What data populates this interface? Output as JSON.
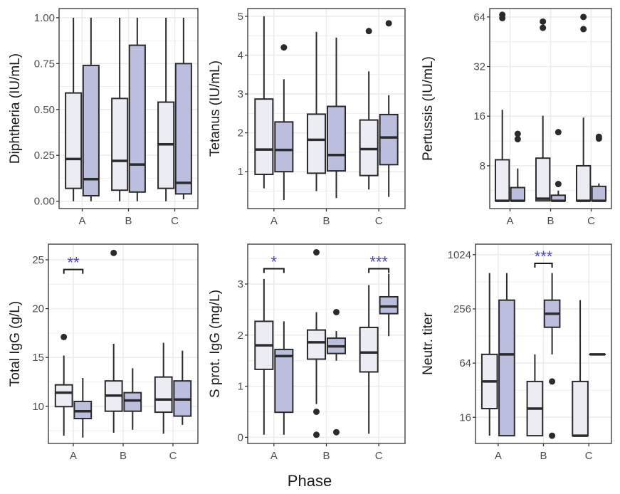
{
  "figure": {
    "x_title": "Phase",
    "colors": {
      "group1_fill": "#ececf4",
      "group2_fill": "#bcbedd",
      "box_stroke": "#2b2b2b",
      "significance": "#4b46c8",
      "grid": "#ebebeb"
    }
  },
  "chart_data": [
    {
      "type": "box",
      "ylabel": "Diphtheria (IU/mL)",
      "scale": "linear",
      "ylim": [
        -0.04,
        1.05
      ],
      "yticks": [
        0,
        0.25,
        0.5,
        0.75,
        1.0
      ],
      "ytick_labels": [
        "0.00",
        "0.25",
        "0.50",
        "0.75",
        "1.00"
      ],
      "yminor": [
        0.125,
        0.375,
        0.625,
        0.875
      ],
      "categories": [
        "A",
        "B",
        "C"
      ],
      "boxes": [
        {
          "cat": "A",
          "group": 1,
          "lo": 0.0,
          "q1": 0.07,
          "med": 0.23,
          "q3": 0.59,
          "hi": 1.0,
          "outliers": []
        },
        {
          "cat": "A",
          "group": 2,
          "lo": 0.0,
          "q1": 0.03,
          "med": 0.12,
          "q3": 0.74,
          "hi": 1.0,
          "outliers": []
        },
        {
          "cat": "B",
          "group": 1,
          "lo": 0.0,
          "q1": 0.06,
          "med": 0.22,
          "q3": 0.56,
          "hi": 1.0,
          "outliers": []
        },
        {
          "cat": "B",
          "group": 2,
          "lo": 0.0,
          "q1": 0.05,
          "med": 0.2,
          "q3": 0.85,
          "hi": 1.0,
          "outliers": []
        },
        {
          "cat": "C",
          "group": 1,
          "lo": 0.0,
          "q1": 0.07,
          "med": 0.31,
          "q3": 0.54,
          "hi": 1.0,
          "outliers": []
        },
        {
          "cat": "C",
          "group": 2,
          "lo": 0.01,
          "q1": 0.04,
          "med": 0.1,
          "q3": 0.75,
          "hi": 1.0,
          "outliers": []
        }
      ],
      "significance": []
    },
    {
      "type": "box",
      "ylabel": "Tetanus (IU/mL)",
      "scale": "linear",
      "ylim": [
        0.05,
        5.2
      ],
      "yticks": [
        1,
        2,
        3,
        4,
        5
      ],
      "ytick_labels": [
        "1",
        "2",
        "3",
        "4",
        "5"
      ],
      "yminor": [
        0.5,
        1.5,
        2.5,
        3.5,
        4.5
      ],
      "categories": [
        "A",
        "B",
        "C"
      ],
      "boxes": [
        {
          "cat": "A",
          "group": 1,
          "lo": 0.57,
          "q1": 0.93,
          "med": 1.57,
          "q3": 2.87,
          "hi": 5.0,
          "outliers": []
        },
        {
          "cat": "A",
          "group": 2,
          "lo": 0.27,
          "q1": 1.0,
          "med": 1.56,
          "q3": 2.28,
          "hi": 3.38,
          "outliers": [
            4.2
          ]
        },
        {
          "cat": "B",
          "group": 1,
          "lo": 0.5,
          "q1": 0.96,
          "med": 1.82,
          "q3": 2.48,
          "hi": 4.6,
          "outliers": []
        },
        {
          "cat": "B",
          "group": 2,
          "lo": 0.32,
          "q1": 1.02,
          "med": 1.43,
          "q3": 2.68,
          "hi": 4.45,
          "outliers": []
        },
        {
          "cat": "C",
          "group": 1,
          "lo": 0.54,
          "q1": 0.9,
          "med": 1.58,
          "q3": 2.33,
          "hi": 3.58,
          "outliers": [
            4.62
          ]
        },
        {
          "cat": "C",
          "group": 2,
          "lo": 0.35,
          "q1": 1.18,
          "med": 1.88,
          "q3": 2.47,
          "hi": 2.97,
          "outliers": [
            4.82
          ]
        }
      ],
      "significance": []
    },
    {
      "type": "box",
      "ylabel": "Pertussis (IU/mL)",
      "scale": "log2",
      "ylim": [
        4.4,
        72
      ],
      "yticks": [
        8,
        16,
        32,
        64
      ],
      "ytick_labels": [
        "8",
        "16",
        "32",
        "64"
      ],
      "yminor": [
        5.66,
        11.31,
        22.63,
        45.25
      ],
      "categories": [
        "A",
        "B",
        "C"
      ],
      "boxes": [
        {
          "cat": "A",
          "group": 1,
          "lo": 4.9,
          "q1": 4.9,
          "med": 4.9,
          "q3": 8.7,
          "hi": 17.5,
          "outliers": [
            63,
            66
          ]
        },
        {
          "cat": "A",
          "group": 2,
          "lo": 4.9,
          "q1": 4.9,
          "med": 4.9,
          "q3": 5.9,
          "hi": 7.7,
          "outliers": [
            11.6,
            12.5
          ]
        },
        {
          "cat": "B",
          "group": 1,
          "lo": 4.9,
          "q1": 4.9,
          "med": 5.05,
          "q3": 8.9,
          "hi": 16.1,
          "outliers": [
            55,
            60
          ]
        },
        {
          "cat": "B",
          "group": 2,
          "lo": 4.9,
          "q1": 4.9,
          "med": 4.9,
          "q3": 5.3,
          "hi": 5.65,
          "outliers": [
            6.2,
            12.8
          ]
        },
        {
          "cat": "C",
          "group": 1,
          "lo": 4.9,
          "q1": 4.9,
          "med": 4.9,
          "q3": 8.0,
          "hi": 15.7,
          "outliers": [
            54,
            64
          ]
        },
        {
          "cat": "C",
          "group": 2,
          "lo": 4.9,
          "q1": 4.9,
          "med": 4.9,
          "q3": 6.0,
          "hi": 6.25,
          "outliers": [
            11.7,
            12.0
          ]
        }
      ],
      "significance": []
    },
    {
      "type": "box",
      "ylabel": "Total IgG (g/L)",
      "scale": "linear",
      "ylim": [
        6.2,
        26.6
      ],
      "yticks": [
        10,
        15,
        20,
        25
      ],
      "ytick_labels": [
        "10",
        "15",
        "20",
        "25"
      ],
      "yminor": [
        7.5,
        12.5,
        17.5,
        22.5
      ],
      "categories": [
        "A",
        "B",
        "C"
      ],
      "boxes": [
        {
          "cat": "A",
          "group": 1,
          "lo": 7.0,
          "q1": 9.97,
          "med": 11.4,
          "q3": 12.2,
          "hi": 15.2,
          "outliers": [
            17.1
          ]
        },
        {
          "cat": "A",
          "group": 2,
          "lo": 6.8,
          "q1": 8.75,
          "med": 9.5,
          "q3": 10.5,
          "hi": 12.9,
          "outliers": []
        },
        {
          "cat": "B",
          "group": 1,
          "lo": 7.3,
          "q1": 9.5,
          "med": 11.1,
          "q3": 12.6,
          "hi": 16.4,
          "outliers": [
            25.7
          ]
        },
        {
          "cat": "B",
          "group": 2,
          "lo": 7.6,
          "q1": 9.5,
          "med": 10.6,
          "q3": 11.4,
          "hi": 13.9,
          "outliers": []
        },
        {
          "cat": "C",
          "group": 1,
          "lo": 7.2,
          "q1": 9.4,
          "med": 10.7,
          "q3": 13.0,
          "hi": 16.5,
          "outliers": []
        },
        {
          "cat": "C",
          "group": 2,
          "lo": 8.1,
          "q1": 9.0,
          "med": 10.7,
          "q3": 12.6,
          "hi": 15.7,
          "outliers": []
        }
      ],
      "significance": [
        {
          "cat": "A",
          "label": "**",
          "y": 24.0
        }
      ]
    },
    {
      "type": "box",
      "ylabel": "S prot. IgG (mg/L)",
      "scale": "linear",
      "ylim": [
        -0.12,
        3.78
      ],
      "yticks": [
        0,
        1,
        2,
        3
      ],
      "ytick_labels": [
        "0",
        "1",
        "2",
        "3"
      ],
      "yminor": [
        0.5,
        1.5,
        2.5,
        3.5
      ],
      "categories": [
        "A",
        "B",
        "C"
      ],
      "boxes": [
        {
          "cat": "A",
          "group": 1,
          "lo": 0.05,
          "q1": 1.33,
          "med": 1.8,
          "q3": 2.27,
          "hi": 3.1,
          "outliers": []
        },
        {
          "cat": "A",
          "group": 2,
          "lo": 0.05,
          "q1": 0.49,
          "med": 1.59,
          "q3": 1.72,
          "hi": 2.27,
          "outliers": []
        },
        {
          "cat": "B",
          "group": 1,
          "lo": 0.65,
          "q1": 1.53,
          "med": 1.86,
          "q3": 2.1,
          "hi": 2.45,
          "outliers": [
            3.62,
            0.5,
            0.05
          ]
        },
        {
          "cat": "B",
          "group": 2,
          "lo": 1.5,
          "q1": 1.64,
          "med": 1.78,
          "q3": 1.94,
          "hi": 2.08,
          "outliers": [
            2.45,
            0.1
          ]
        },
        {
          "cat": "C",
          "group": 1,
          "lo": 0.07,
          "q1": 1.28,
          "med": 1.66,
          "q3": 2.15,
          "hi": 2.98,
          "outliers": []
        },
        {
          "cat": "C",
          "group": 2,
          "lo": 1.98,
          "q1": 2.42,
          "med": 2.56,
          "q3": 2.75,
          "hi": 3.2,
          "outliers": []
        }
      ],
      "significance": [
        {
          "cat": "A",
          "label": "*",
          "y": 3.3
        },
        {
          "cat": "C",
          "label": "***",
          "y": 3.3
        }
      ]
    },
    {
      "type": "box",
      "ylabel": "Neutr. titer",
      "scale": "log2",
      "ylim": [
        8.2,
        1340
      ],
      "yticks": [
        16,
        64,
        256,
        1024
      ],
      "ytick_labels": [
        "16",
        "64",
        "256",
        "1024"
      ],
      "yminor": [
        32,
        128,
        512
      ],
      "categories": [
        "A",
        "B",
        "C"
      ],
      "boxes": [
        {
          "cat": "A",
          "group": 1,
          "lo": 10,
          "q1": 20,
          "med": 40,
          "q3": 80,
          "hi": 640,
          "outliers": []
        },
        {
          "cat": "A",
          "group": 2,
          "lo": 10,
          "q1": 10,
          "med": 80,
          "q3": 320,
          "hi": 640,
          "outliers": []
        },
        {
          "cat": "B",
          "group": 1,
          "lo": 10,
          "q1": 10,
          "med": 20,
          "q3": 40,
          "hi": 80,
          "outliers": []
        },
        {
          "cat": "B",
          "group": 2,
          "lo": 80,
          "q1": 160,
          "med": 226,
          "q3": 320,
          "hi": 640,
          "outliers": [
            40,
            10
          ]
        },
        {
          "cat": "C",
          "group": 1,
          "lo": 10,
          "q1": 10,
          "med": 10,
          "q3": 40,
          "hi": 320,
          "outliers": []
        },
        {
          "cat": "C",
          "group": 2,
          "lo": 80,
          "q1": 80,
          "med": 80,
          "q3": 80,
          "hi": 80,
          "outliers": []
        }
      ],
      "significance": [
        {
          "cat": "B",
          "label": "***",
          "y": 820
        }
      ]
    }
  ]
}
